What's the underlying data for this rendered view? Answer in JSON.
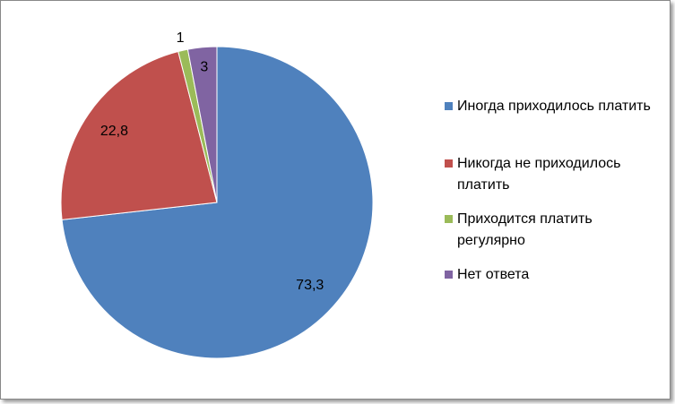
{
  "chart_data": {
    "type": "pie",
    "categories": [
      "Иногда приходилось платить",
      "Никогда не приходилось платить",
      "Приходится платить регулярно",
      "Нет ответа"
    ],
    "values": [
      73.3,
      22.8,
      1,
      3
    ],
    "value_labels": [
      "73,3",
      "22,8",
      "1",
      "3"
    ],
    "colors": [
      "#4f81bd",
      "#c0504d",
      "#9bbb59",
      "#8064a2"
    ],
    "legend": "right"
  }
}
